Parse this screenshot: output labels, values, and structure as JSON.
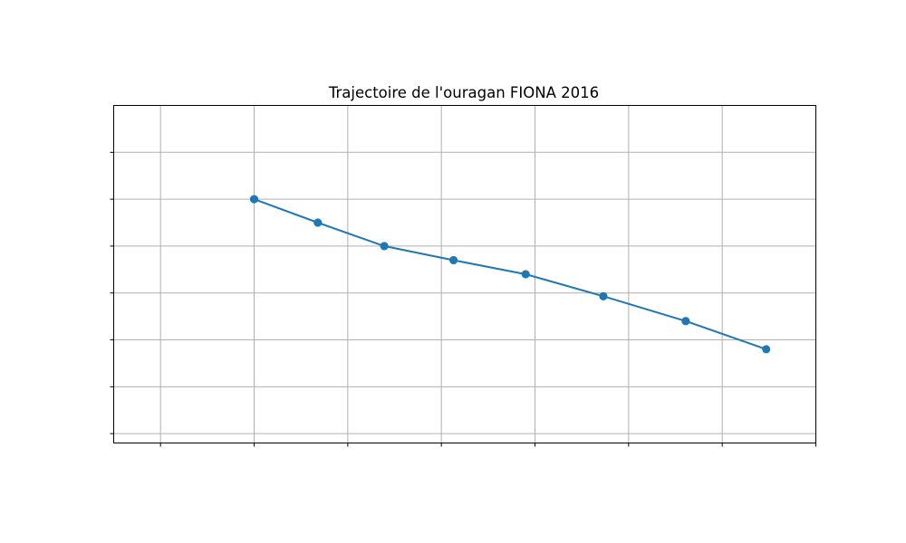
{
  "chart_data": {
    "type": "line",
    "title": "Trajectoire de l'ouragan FIONA 2016",
    "xlabel": "",
    "ylabel": "",
    "xlim": [
      -0.5,
      7.0
    ],
    "ylim": [
      -0.2,
      7.0
    ],
    "xgrid": [
      0,
      1,
      2,
      3,
      4,
      5,
      6,
      7
    ],
    "ygrid": [
      0,
      1,
      2,
      3,
      4,
      5,
      6
    ],
    "grid": true,
    "series": [
      {
        "name": "FIONA 2016",
        "color": "#1f77b4",
        "marker": "circle",
        "x": [
          1.0,
          1.68,
          2.39,
          3.13,
          3.9,
          4.73,
          5.61,
          6.47,
          5.61,
          4.73,
          3.9,
          3.13,
          2.39,
          1.68,
          1.0
        ],
        "y": [
          5.0,
          4.5,
          4.0,
          3.7,
          3.4,
          2.93,
          2.4,
          1.8,
          2.4,
          2.93,
          3.4,
          3.7,
          4.0,
          4.5,
          5.0
        ]
      }
    ]
  }
}
